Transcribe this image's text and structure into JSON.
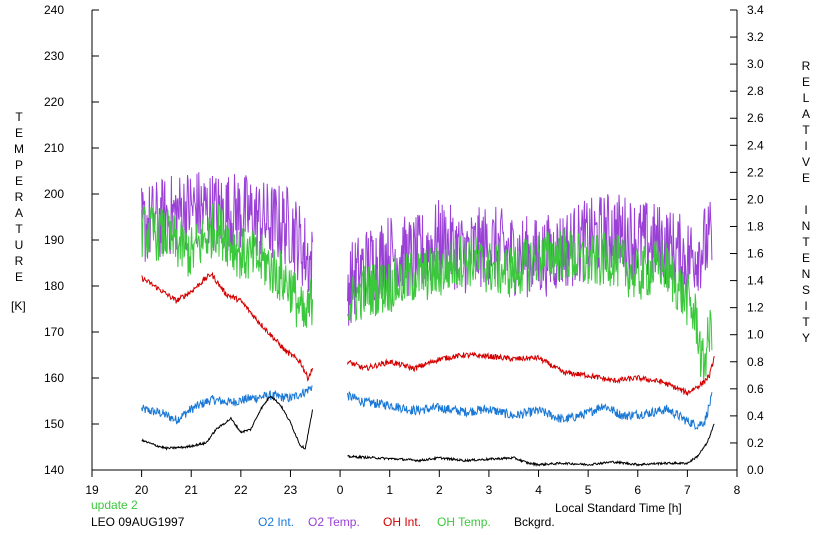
{
  "chart_data": {
    "type": "line",
    "left_axis": {
      "label": "TEMPERATURE",
      "unit": "[K]",
      "ylim": [
        140,
        240
      ],
      "ticks": [
        "140",
        "150",
        "160",
        "170",
        "180",
        "190",
        "200",
        "210",
        "220",
        "230",
        "240"
      ]
    },
    "right_axis": {
      "label": "RELATIVE INTENSITY",
      "ylim": [
        0.0,
        3.4
      ],
      "ticks": [
        "0.0",
        "0.2",
        "0.4",
        "0.6",
        "0.8",
        "1.0",
        "1.2",
        "1.4",
        "1.6",
        "1.8",
        "2.0",
        "2.2",
        "2.4",
        "2.6",
        "2.8",
        "3.0",
        "3.2",
        "3.4"
      ]
    },
    "x_axis": {
      "label": "Local Standard Time [h]",
      "xlim": [
        19,
        32
      ],
      "tick_labels": [
        "19",
        "20",
        "21",
        "22",
        "23",
        "0",
        "1",
        "2",
        "3",
        "4",
        "5",
        "6",
        "7",
        "8"
      ]
    },
    "annotations": {
      "update": "update 2",
      "station": "LEO 09AUG1997"
    },
    "grid": false,
    "gap": [
      23.5,
      24.15
    ],
    "series": [
      {
        "name": "O2 Int.",
        "axis": "right",
        "color": "#1a78d6",
        "noise": 0.035,
        "points": [
          [
            20.0,
            0.45
          ],
          [
            20.4,
            0.42
          ],
          [
            20.7,
            0.37
          ],
          [
            21.0,
            0.45
          ],
          [
            21.4,
            0.52
          ],
          [
            21.8,
            0.5
          ],
          [
            22.2,
            0.53
          ],
          [
            22.6,
            0.55
          ],
          [
            23.0,
            0.53
          ],
          [
            23.3,
            0.58
          ],
          [
            23.45,
            0.62
          ],
          [
            24.15,
            0.55
          ],
          [
            24.5,
            0.5
          ],
          [
            25.0,
            0.48
          ],
          [
            25.5,
            0.44
          ],
          [
            26.0,
            0.46
          ],
          [
            26.5,
            0.43
          ],
          [
            27.0,
            0.45
          ],
          [
            27.5,
            0.4
          ],
          [
            28.0,
            0.44
          ],
          [
            28.5,
            0.37
          ],
          [
            29.0,
            0.42
          ],
          [
            29.3,
            0.48
          ],
          [
            29.7,
            0.4
          ],
          [
            30.2,
            0.42
          ],
          [
            30.6,
            0.45
          ],
          [
            31.0,
            0.36
          ],
          [
            31.2,
            0.33
          ],
          [
            31.35,
            0.36
          ],
          [
            31.5,
            0.55
          ]
        ]
      },
      {
        "name": "O2 Temp.",
        "axis": "left",
        "color": "#9a40d6",
        "noise": 9,
        "points": [
          [
            20.0,
            193
          ],
          [
            20.5,
            195
          ],
          [
            21.0,
            197
          ],
          [
            21.5,
            196
          ],
          [
            22.0,
            196
          ],
          [
            22.5,
            194
          ],
          [
            23.0,
            193
          ],
          [
            23.45,
            184
          ],
          [
            24.15,
            180
          ],
          [
            24.5,
            184
          ],
          [
            25.0,
            187
          ],
          [
            25.5,
            186
          ],
          [
            26.0,
            190
          ],
          [
            26.5,
            187
          ],
          [
            27.0,
            189
          ],
          [
            27.5,
            187
          ],
          [
            28.0,
            186
          ],
          [
            28.5,
            188
          ],
          [
            29.0,
            190
          ],
          [
            29.5,
            192
          ],
          [
            30.0,
            190
          ],
          [
            30.5,
            189
          ],
          [
            31.0,
            186
          ],
          [
            31.5,
            190
          ]
        ]
      },
      {
        "name": "OH Int.",
        "axis": "right",
        "color": "#d40000",
        "noise": 0.02,
        "points": [
          [
            20.0,
            1.42
          ],
          [
            20.3,
            1.35
          ],
          [
            20.7,
            1.25
          ],
          [
            21.0,
            1.32
          ],
          [
            21.4,
            1.45
          ],
          [
            21.7,
            1.3
          ],
          [
            22.0,
            1.25
          ],
          [
            22.3,
            1.12
          ],
          [
            22.6,
            1.0
          ],
          [
            22.9,
            0.88
          ],
          [
            23.2,
            0.8
          ],
          [
            23.35,
            0.68
          ],
          [
            23.45,
            0.75
          ],
          [
            24.15,
            0.8
          ],
          [
            24.5,
            0.75
          ],
          [
            25.0,
            0.8
          ],
          [
            25.5,
            0.75
          ],
          [
            26.0,
            0.82
          ],
          [
            26.5,
            0.85
          ],
          [
            27.0,
            0.84
          ],
          [
            27.5,
            0.82
          ],
          [
            28.0,
            0.83
          ],
          [
            28.5,
            0.72
          ],
          [
            29.0,
            0.7
          ],
          [
            29.5,
            0.66
          ],
          [
            30.0,
            0.68
          ],
          [
            30.5,
            0.65
          ],
          [
            31.0,
            0.57
          ],
          [
            31.3,
            0.64
          ],
          [
            31.45,
            0.7
          ],
          [
            31.55,
            0.85
          ]
        ]
      },
      {
        "name": "OH Temp.",
        "axis": "left",
        "color": "#3cc83c",
        "noise": 6,
        "points": [
          [
            20.0,
            192
          ],
          [
            20.5,
            191
          ],
          [
            21.0,
            187
          ],
          [
            21.5,
            193
          ],
          [
            22.0,
            187
          ],
          [
            22.5,
            185
          ],
          [
            23.0,
            180
          ],
          [
            23.3,
            172
          ],
          [
            23.45,
            178
          ],
          [
            24.15,
            176
          ],
          [
            24.5,
            179
          ],
          [
            25.0,
            180
          ],
          [
            25.5,
            182
          ],
          [
            26.0,
            183
          ],
          [
            26.5,
            186
          ],
          [
            27.0,
            184
          ],
          [
            27.5,
            183
          ],
          [
            28.0,
            186
          ],
          [
            28.5,
            187
          ],
          [
            29.0,
            185
          ],
          [
            29.5,
            186
          ],
          [
            30.0,
            182
          ],
          [
            30.5,
            185
          ],
          [
            31.0,
            177
          ],
          [
            31.2,
            172
          ],
          [
            31.3,
            162
          ],
          [
            31.5,
            172
          ]
        ]
      },
      {
        "name": "Bckgrd.",
        "axis": "right",
        "color": "#000000",
        "noise": 0.008,
        "points": [
          [
            20.0,
            0.22
          ],
          [
            20.3,
            0.18
          ],
          [
            20.5,
            0.16
          ],
          [
            20.9,
            0.17
          ],
          [
            21.3,
            0.2
          ],
          [
            21.5,
            0.3
          ],
          [
            21.8,
            0.38
          ],
          [
            22.0,
            0.28
          ],
          [
            22.2,
            0.3
          ],
          [
            22.4,
            0.45
          ],
          [
            22.6,
            0.55
          ],
          [
            22.8,
            0.48
          ],
          [
            23.0,
            0.35
          ],
          [
            23.2,
            0.18
          ],
          [
            23.3,
            0.16
          ],
          [
            23.45,
            0.45
          ],
          [
            24.15,
            0.1
          ],
          [
            24.7,
            0.09
          ],
          [
            25.2,
            0.08
          ],
          [
            25.6,
            0.07
          ],
          [
            26.0,
            0.09
          ],
          [
            26.5,
            0.07
          ],
          [
            27.0,
            0.08
          ],
          [
            27.5,
            0.09
          ],
          [
            27.8,
            0.05
          ],
          [
            28.0,
            0.04
          ],
          [
            28.5,
            0.05
          ],
          [
            29.0,
            0.04
          ],
          [
            29.5,
            0.06
          ],
          [
            30.0,
            0.04
          ],
          [
            30.5,
            0.05
          ],
          [
            31.0,
            0.05
          ],
          [
            31.2,
            0.1
          ],
          [
            31.4,
            0.2
          ],
          [
            31.55,
            0.35
          ]
        ]
      }
    ]
  }
}
